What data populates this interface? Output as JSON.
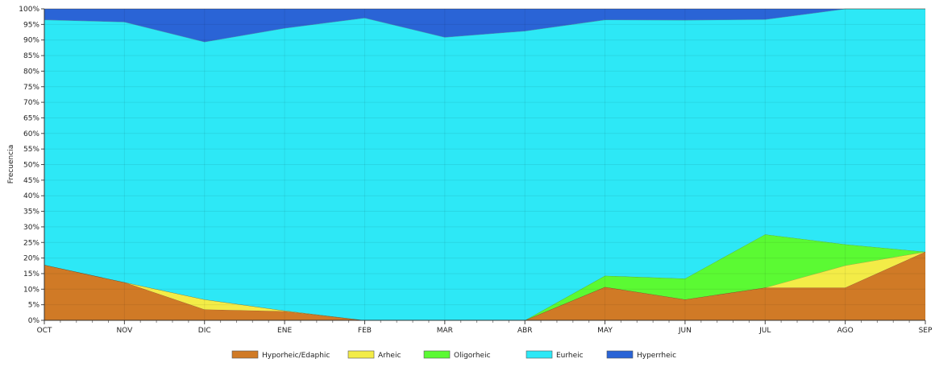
{
  "chart_data": {
    "type": "area",
    "stacked": "percent",
    "title": "",
    "xlabel": "",
    "ylabel": "Frecuencia",
    "categories": [
      "OCT",
      "NOV",
      "DIC",
      "ENE",
      "FEB",
      "MAR",
      "ABR",
      "MAY",
      "JUN",
      "JUL",
      "AGO",
      "SEP"
    ],
    "ylim": [
      0,
      100
    ],
    "yticks": [
      "0%",
      "5%",
      "10%",
      "15%",
      "20%",
      "25%",
      "30%",
      "35%",
      "40%",
      "45%",
      "50%",
      "55%",
      "60%",
      "65%",
      "70%",
      "75%",
      "80%",
      "85%",
      "90%",
      "95%",
      "100%"
    ],
    "grid": true,
    "legend_position": "bottom",
    "series": [
      {
        "name": "Hyporheic/Edaphic",
        "color": "#d07a26",
        "values": [
          17.8,
          12.2,
          3.5,
          2.9,
          0,
          0,
          0,
          10.7,
          6.7,
          10.5,
          10.5,
          22.0
        ]
      },
      {
        "name": "Arheic",
        "color": "#f3ec47",
        "values": [
          0,
          0,
          3.2,
          0.2,
          0,
          0,
          0,
          0,
          0,
          0,
          7.1,
          0
        ]
      },
      {
        "name": "Oligorheic",
        "color": "#5bfa33",
        "values": [
          0,
          0,
          0,
          0,
          0,
          0,
          0,
          3.6,
          6.7,
          17.1,
          6.8,
          0
        ]
      },
      {
        "name": "Eurheic",
        "color": "#2de8f6",
        "values": [
          78.7,
          83.6,
          82.7,
          90.7,
          97.1,
          90.9,
          92.9,
          82.2,
          83.0,
          69.0,
          75.6,
          78.0
        ]
      },
      {
        "name": "Hyperrheic",
        "color": "#2a64d6",
        "values": [
          3.5,
          4.2,
          10.6,
          6.2,
          2.9,
          9.1,
          7.1,
          3.5,
          3.6,
          3.4,
          0,
          0
        ]
      }
    ]
  }
}
